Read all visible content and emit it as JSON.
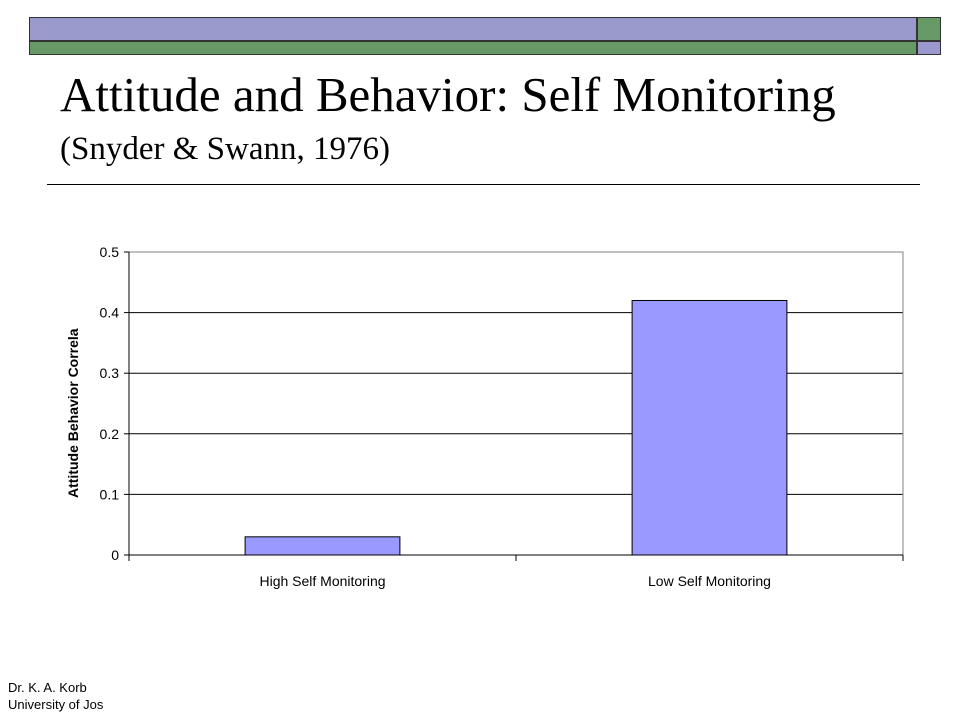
{
  "slide": {
    "title": "Attitude and Behavior: Self Monitoring",
    "subtitle": "(Snyder & Swann, 1976)",
    "footer_line1": "Dr. K. A. Korb",
    "footer_line2": "University of Jos"
  },
  "colors": {
    "bar_fill": "#9999ff",
    "strip_blue": "#9999cc",
    "strip_green": "#669966"
  },
  "chart_data": {
    "type": "bar",
    "categories": [
      "High Self Monitoring",
      "Low Self Monitoring"
    ],
    "values": [
      0.03,
      0.42
    ],
    "ylabel": "Attitude Behavior Correla",
    "xlabel": "",
    "ylim": [
      0,
      0.5
    ],
    "yticks": [
      "0",
      "0.1",
      "0.2",
      "0.3",
      "0.4",
      "0.5"
    ],
    "grid": true,
    "legend": "none"
  }
}
